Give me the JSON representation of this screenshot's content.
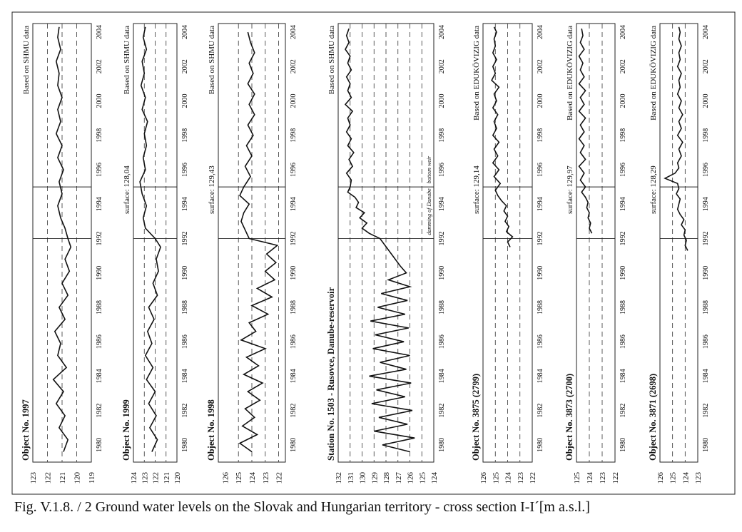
{
  "caption": "Fig. V.1.8. / 2  Ground water levels on the Slovak and Hungarian territory - cross section I-I´[m a.s.l.]",
  "chart_data": [
    {
      "type": "line",
      "title": "Object No. 1997",
      "surface": "",
      "source": "Based on SHMU data",
      "x_ticks": [
        "1980",
        "1982",
        "1984",
        "1986",
        "1988",
        "1990",
        "1992",
        "1994",
        "1996",
        "1998",
        "2000",
        "2002",
        "2004"
      ],
      "xlim": [
        1979.0,
        2004.5
      ],
      "y_ticks": [
        "123",
        "122",
        "121",
        "120",
        "119"
      ],
      "ylim": [
        119,
        123
      ],
      "dashed_levels": [
        122,
        121,
        120
      ],
      "series": [
        {
          "x": [
            1979.6,
            1980.3,
            1981.0,
            1981.7,
            1982.4,
            1983.1,
            1983.8,
            1984.5,
            1985.2,
            1985.9,
            1986.6,
            1987.3,
            1988.0,
            1988.7,
            1989.4,
            1990.1,
            1990.8,
            1991.5,
            1992.0,
            1992.6,
            1993.2,
            1993.9,
            1994.6,
            1995.3,
            1996.0,
            1996.7,
            1997.4,
            1998.1,
            1998.8,
            1999.5,
            2000.2,
            2000.9,
            2001.6,
            2002.3,
            2003.0,
            2003.7,
            2004.3
          ],
          "y": [
            120.9,
            120.6,
            121.2,
            120.8,
            121.4,
            120.9,
            121.6,
            120.7,
            121.3,
            121.1,
            121.5,
            120.8,
            121.2,
            120.6,
            121.0,
            120.5,
            120.8,
            120.4,
            120.6,
            120.8,
            121.1,
            121.3,
            121.0,
            121.2,
            120.9,
            121.3,
            121.0,
            121.4,
            121.1,
            121.3,
            121.0,
            121.3,
            121.2,
            121.4,
            121.1,
            121.3,
            121.2
          ]
        }
      ]
    },
    {
      "type": "line",
      "title": "Object No. 1999",
      "surface": "surface: 128,04",
      "source": "Based on SHMU data",
      "x_ticks": [
        "1980",
        "1982",
        "1984",
        "1986",
        "1988",
        "1990",
        "1992",
        "1994",
        "1996",
        "1998",
        "2000",
        "2002",
        "2004"
      ],
      "xlim": [
        1979.0,
        2004.5
      ],
      "y_ticks": [
        "124",
        "123",
        "122",
        "121",
        "120"
      ],
      "ylim": [
        120,
        124
      ],
      "dashed_levels": [
        123,
        122,
        121
      ],
      "series": [
        {
          "x": [
            1979.6,
            1980.3,
            1981.0,
            1981.7,
            1982.4,
            1983.1,
            1983.8,
            1984.5,
            1985.2,
            1985.9,
            1986.6,
            1987.3,
            1988.0,
            1988.7,
            1989.4,
            1990.1,
            1990.8,
            1991.5,
            1992.0,
            1992.6,
            1993.2,
            1993.9,
            1994.6,
            1995.3,
            1996.0,
            1996.7,
            1997.4,
            1998.1,
            1998.8,
            1999.5,
            2000.2,
            2000.9,
            2001.6,
            2002.3,
            2003.0,
            2003.7,
            2004.3
          ],
          "y": [
            122.3,
            121.8,
            122.5,
            121.9,
            122.6,
            122.0,
            122.8,
            122.2,
            122.9,
            122.3,
            122.7,
            122.1,
            122.6,
            121.8,
            122.2,
            121.7,
            121.9,
            121.5,
            122.0,
            122.9,
            123.1,
            122.8,
            123.2,
            123.4,
            122.9,
            123.1,
            122.8,
            123.0,
            122.7,
            123.2,
            122.9,
            123.3,
            123.0,
            123.2,
            122.8,
            123.1,
            122.9
          ]
        }
      ]
    },
    {
      "type": "line",
      "title": "Object No. 1998",
      "surface": "surface: 129,43",
      "source": "Based on SHMU data",
      "x_ticks": [
        "1980",
        "1982",
        "1984",
        "1986",
        "1988",
        "1990",
        "1992",
        "1994",
        "1996",
        "1998",
        "2000",
        "2002",
        "2004"
      ],
      "xlim": [
        1979.0,
        2004.5
      ],
      "y_ticks": [
        "126",
        "125",
        "124",
        "123",
        "122"
      ],
      "ylim": [
        121.5,
        126.5
      ],
      "dashed_levels": [
        125,
        124,
        123,
        122
      ],
      "series": [
        {
          "x": [
            1979.6,
            1980.1,
            1980.6,
            1981.1,
            1981.6,
            1982.1,
            1982.6,
            1983.1,
            1983.6,
            1984.1,
            1984.6,
            1985.1,
            1985.6,
            1986.1,
            1986.6,
            1987.1,
            1987.6,
            1988.1,
            1988.6,
            1989.1,
            1989.6,
            1990.1,
            1990.6,
            1991.1,
            1991.6,
            1992.0,
            1992.5,
            1993.0,
            1993.5,
            1994.0,
            1994.5,
            1995.0,
            1995.6,
            1996.2,
            1996.8,
            1997.4,
            1998.0,
            1998.6,
            1999.2,
            1999.8,
            2000.4,
            2001.0,
            2001.6,
            2002.2,
            2002.8,
            2003.4,
            2004.0
          ],
          "y": [
            124.0,
            124.9,
            123.6,
            124.7,
            123.8,
            124.5,
            123.4,
            124.3,
            123.2,
            124.6,
            123.5,
            124.4,
            123.0,
            124.8,
            123.7,
            124.2,
            122.8,
            124.0,
            122.5,
            123.6,
            122.3,
            123.0,
            122.2,
            122.9,
            122.1,
            124.2,
            124.5,
            124.8,
            124.6,
            124.2,
            124.9,
            124.6,
            124.1,
            124.5,
            124.0,
            124.4,
            123.9,
            124.3,
            123.8,
            124.2,
            123.8,
            124.3,
            123.9,
            124.2,
            123.8,
            124.1,
            124.3
          ]
        }
      ]
    },
    {
      "type": "line",
      "title": "Station No. 1503 - Rusovce, Danube-reservoir",
      "surface": "",
      "source": "Based on SHMU data",
      "annotations": [
        "damming of Danube",
        "bottom weir"
      ],
      "x_ticks": [
        "1980",
        "1982",
        "1984",
        "1986",
        "1988",
        "1990",
        "1992",
        "1994",
        "1996",
        "1998",
        "2000",
        "2002",
        "2004"
      ],
      "xlim": [
        1979.0,
        2004.5
      ],
      "y_ticks": [
        "132",
        "131",
        "130",
        "129",
        "128",
        "127",
        "126",
        "125",
        "124"
      ],
      "ylim": [
        124,
        132
      ],
      "dashed_levels": [
        131,
        130,
        129,
        128,
        127,
        126,
        125
      ],
      "series": [
        {
          "x": [
            1979.6,
            1980.0,
            1980.4,
            1980.8,
            1981.2,
            1981.6,
            1982.0,
            1982.4,
            1982.8,
            1983.2,
            1983.6,
            1984.0,
            1984.4,
            1984.8,
            1985.2,
            1985.6,
            1986.0,
            1986.4,
            1986.8,
            1987.2,
            1987.6,
            1988.0,
            1988.4,
            1988.8,
            1989.2,
            1989.6,
            1990.0,
            1990.4,
            1992.0,
            1992.3,
            1992.6,
            1992.9,
            1993.2,
            1993.5,
            1993.8,
            1994.1,
            1994.4,
            1994.7,
            1995.0,
            1995.4,
            1995.8,
            1996.2,
            1996.6,
            1997.0,
            1997.4,
            1997.8,
            1998.2,
            1998.6,
            1999.0,
            1999.4,
            1999.8,
            2000.2,
            2000.6,
            2001.0,
            2001.4,
            2001.8,
            2002.2,
            2002.6,
            2003.0,
            2003.4,
            2003.8,
            2004.2
          ],
          "y": [
            126.0,
            128.3,
            125.6,
            129.0,
            126.2,
            128.6,
            125.8,
            129.2,
            126.4,
            128.8,
            125.9,
            129.4,
            126.3,
            128.5,
            126.0,
            129.1,
            126.5,
            128.9,
            126.1,
            129.3,
            126.4,
            128.7,
            126.2,
            128.4,
            126.0,
            127.8,
            126.3,
            126.8,
            128.5,
            129.4,
            130.0,
            129.6,
            130.2,
            129.8,
            130.5,
            130.3,
            130.6,
            131.2,
            131.0,
            130.9,
            131.3,
            130.8,
            131.1,
            130.7,
            131.2,
            130.9,
            131.3,
            131.0,
            131.2,
            130.8,
            131.4,
            130.9,
            131.2,
            131.0,
            131.3,
            130.9,
            131.2,
            131.0,
            131.4,
            131.1,
            131.3,
            131.1
          ]
        }
      ]
    },
    {
      "type": "line",
      "title": "Object No. 3875 (2799)",
      "surface": "surface: 129,14",
      "source": "Based on EDUKÖVIZIG data",
      "x_ticks": [
        "1980",
        "1982",
        "1984",
        "1986",
        "1988",
        "1990",
        "1992",
        "1994",
        "1996",
        "1998",
        "2000",
        "2002",
        "2004"
      ],
      "xlim": [
        1979.0,
        2004.5
      ],
      "y_ticks": [
        "126",
        "125",
        "124",
        "123",
        "122"
      ],
      "ylim": [
        122,
        126
      ],
      "dashed_levels": [
        125,
        124,
        123
      ],
      "series": [
        {
          "x": [
            1991.5,
            1991.8,
            1992.1,
            1992.4,
            1992.7,
            1993.0,
            1993.3,
            1993.6,
            1993.9,
            1994.2,
            1994.5,
            1994.8,
            1995.2,
            1995.6,
            1996.0,
            1996.4,
            1996.8,
            1997.2,
            1997.6,
            1998.0,
            1998.4,
            1998.8,
            1999.2,
            1999.6,
            2000.0,
            2000.4,
            2000.8,
            2001.2,
            2001.6,
            2002.0,
            2002.4,
            2002.8,
            2003.2,
            2003.6,
            2004.0,
            2004.3
          ],
          "y": [
            123.8,
            124.0,
            123.6,
            124.1,
            123.9,
            124.2,
            124.0,
            124.3,
            124.1,
            124.5,
            124.8,
            125.0,
            124.6,
            125.1,
            124.7,
            125.2,
            124.8,
            125.1,
            124.7,
            125.2,
            124.9,
            125.1,
            124.8,
            125.2,
            124.9,
            125.1,
            124.7,
            125.3,
            125.0,
            125.2,
            124.9,
            125.2,
            125.0,
            125.1,
            124.9,
            125.1
          ]
        }
      ]
    },
    {
      "type": "line",
      "title": "Object No. 3873 (2700)",
      "surface": "surface: 129,97",
      "source": "Based on EDUKÖVIZIG data",
      "x_ticks": [
        "1980",
        "1982",
        "1984",
        "1986",
        "1988",
        "1990",
        "1992",
        "1994",
        "1996",
        "1998",
        "2000",
        "2002",
        "2004"
      ],
      "xlim": [
        1979.0,
        2004.5
      ],
      "y_ticks": [
        "125",
        "124",
        "123",
        "122"
      ],
      "ylim": [
        122,
        125
      ],
      "dashed_levels": [
        124,
        123
      ],
      "series": [
        {
          "x": [
            1992.3,
            1992.6,
            1992.9,
            1993.2,
            1993.5,
            1993.8,
            1994.1,
            1994.4,
            1994.7,
            1995.0,
            1995.4,
            1995.8,
            1996.2,
            1996.6,
            1997.0,
            1997.4,
            1997.8,
            1998.2,
            1998.6,
            1999.0,
            1999.4,
            1999.8,
            2000.2,
            2000.6,
            2001.0,
            2001.4,
            2001.8,
            2002.2,
            2002.6,
            2003.0,
            2003.4,
            2003.8,
            2004.2
          ],
          "y": [
            123.8,
            124.0,
            123.9,
            124.1,
            124.0,
            124.2,
            124.1,
            124.3,
            124.6,
            124.3,
            124.7,
            124.4,
            124.8,
            124.3,
            124.7,
            124.4,
            124.8,
            124.4,
            124.7,
            124.3,
            124.8,
            124.4,
            124.7,
            124.3,
            124.8,
            124.4,
            124.7,
            124.5,
            124.8,
            124.4,
            124.7,
            124.5,
            124.6
          ]
        }
      ]
    },
    {
      "type": "line",
      "title": "Object No. 3871 (2698)",
      "surface": "surface: 128,29",
      "source": "Based on EDUKÖVIZIG data",
      "x_ticks": [
        "1980",
        "1982",
        "1984",
        "1986",
        "1988",
        "1990",
        "1992",
        "1994",
        "1996",
        "1998",
        "2000",
        "2002",
        "2004"
      ],
      "xlim": [
        1979.0,
        2004.5
      ],
      "y_ticks": [
        "126",
        "125",
        "124",
        "123"
      ],
      "ylim": [
        123,
        126
      ],
      "dashed_levels": [
        125,
        124
      ],
      "series": [
        {
          "x": [
            1991.3,
            1991.6,
            1991.9,
            1992.2,
            1992.5,
            1992.8,
            1993.1,
            1993.4,
            1993.7,
            1994.0,
            1994.3,
            1994.6,
            1994.9,
            1995.2,
            1995.5,
            1995.8,
            1996.1,
            1996.4,
            1996.8,
            1997.2,
            1997.6,
            1998.0,
            1998.4,
            1998.8,
            1999.2,
            1999.6,
            2000.0,
            2000.4,
            2000.8,
            2001.2,
            2001.6,
            2002.0,
            2002.4,
            2002.8,
            2003.2,
            2003.6,
            2004.0,
            2004.3
          ],
          "y": [
            123.8,
            124.0,
            123.9,
            124.1,
            124.0,
            124.3,
            124.1,
            124.4,
            124.6,
            124.5,
            124.4,
            124.7,
            124.5,
            124.6,
            125.6,
            124.8,
            124.5,
            124.6,
            124.3,
            124.5,
            124.2,
            124.6,
            124.3,
            124.5,
            124.2,
            124.5,
            124.3,
            124.6,
            124.4,
            124.5,
            124.3,
            124.6,
            124.4,
            124.5,
            124.3,
            124.5,
            124.4,
            124.5
          ]
        }
      ]
    }
  ]
}
